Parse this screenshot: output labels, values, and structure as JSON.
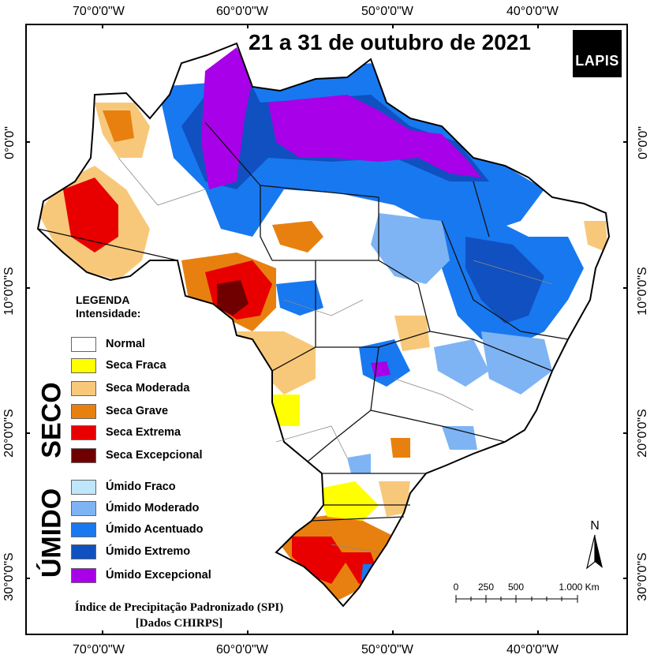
{
  "title": "21 a 31 de outubro de 2021",
  "logo_text": "LAPIS",
  "longitude_labels": [
    "70°0'0\"W",
    "60°0'0\"W",
    "50°0'0\"W",
    "40°0'0\"W"
  ],
  "latitude_labels": [
    "0°0'0\"",
    "10°0'0\"S",
    "20°0'0\"S",
    "30°0'0\"S"
  ],
  "legend": {
    "title_line1": "LEGENDA",
    "title_line2": "Intensidade:",
    "dry_group_label": "SECO",
    "wet_group_label": "ÚMIDO",
    "items": [
      {
        "label": "Normal",
        "color": "#ffffff"
      },
      {
        "label": "Seca Fraca",
        "color": "#ffff00"
      },
      {
        "label": "Seca Moderada",
        "color": "#f8c87a"
      },
      {
        "label": "Seca Grave",
        "color": "#e88010"
      },
      {
        "label": "Seca Extrema",
        "color": "#e80000"
      },
      {
        "label": "Seca Excepcional",
        "color": "#700000"
      },
      {
        "label": "Úmido Fraco",
        "color": "#bfe6fb"
      },
      {
        "label": "Úmido Moderado",
        "color": "#7eb4f4"
      },
      {
        "label": "Úmido Acentuado",
        "color": "#1878f0"
      },
      {
        "label": "Úmido Extremo",
        "color": "#1050c0"
      },
      {
        "label": "Úmido Excepcional",
        "color": "#a800e8"
      }
    ]
  },
  "caption_line1": "Índice de Precipitação Padronizado (SPI)",
  "caption_line2": "[Dados CHIRPS]",
  "scale_bar": {
    "labels": [
      "0",
      "250",
      "500",
      "1.000 Km"
    ]
  },
  "north_label": "N"
}
